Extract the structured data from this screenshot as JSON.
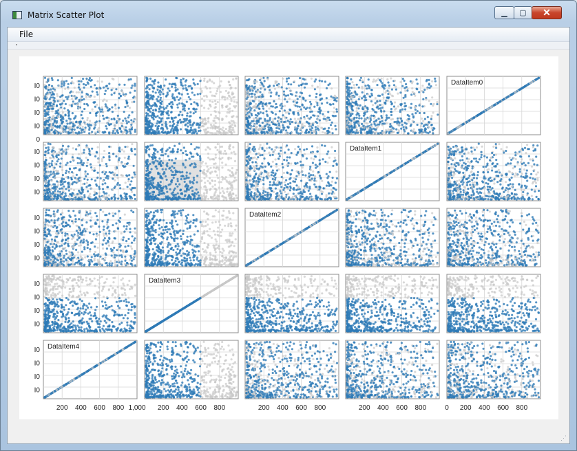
{
  "window": {
    "title": "Matrix Scatter Plot",
    "minimize_icon": "minimize-icon",
    "maximize_icon": "maximize-icon",
    "close_icon": "close-icon"
  },
  "menu": {
    "file_label": "File"
  },
  "colors": {
    "point": "#2e7bb7",
    "faded": "#c8c8c8",
    "grid": "#d6d6d6",
    "frame": "#8c8c8c",
    "selection": "#c8c8c8"
  },
  "chart_data": {
    "type": "scatter",
    "variables": [
      "DataItem0",
      "DataItem1",
      "DataItem2",
      "DataItem3",
      "DataItem4"
    ],
    "variable_range": [
      0,
      1000
    ],
    "diagonal_labels": [
      {
        "row": 0,
        "col": 4,
        "label": "DataItem0"
      },
      {
        "row": 1,
        "col": 3,
        "label": "DataItem1"
      },
      {
        "row": 2,
        "col": 2,
        "label": "DataItem2"
      },
      {
        "row": 3,
        "col": 1,
        "label": "DataItem3"
      },
      {
        "row": 4,
        "col": 0,
        "label": "DataItem4"
      }
    ],
    "y_tick_labels": [
      "I0",
      "I0",
      "I0",
      "I0",
      "0"
    ],
    "y_tick_labels_other_rows": [
      "I0",
      "I0",
      "I0",
      "I0"
    ],
    "x_tick_labels": [
      [
        "200",
        "400",
        "600",
        "800",
        "1,000"
      ],
      [
        "200",
        "400",
        "600",
        "800"
      ],
      [
        "200",
        "400",
        "600",
        "800"
      ],
      [
        "200",
        "400",
        "600",
        "800"
      ],
      [
        "0",
        "200",
        "400",
        "600",
        "800"
      ]
    ],
    "brush_selection": {
      "row": 1,
      "col": 1,
      "x_range": [
        0,
        600
      ],
      "y_range": [
        0,
        700
      ],
      "selected_variable": "DataItem3",
      "selected_range": [
        0,
        600
      ]
    },
    "points_per_panel": 700,
    "grid": true
  }
}
